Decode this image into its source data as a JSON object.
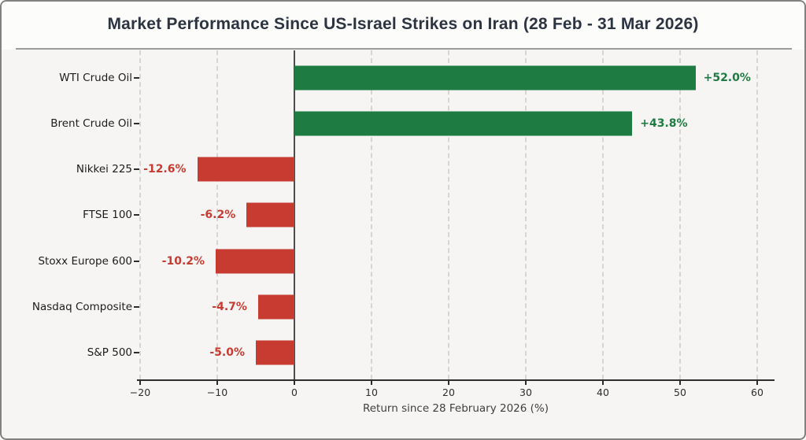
{
  "title": "Market Performance Since US-Israel Strikes on Iran (28 Feb - 31 Mar 2026)",
  "chart_data": {
    "type": "bar",
    "orientation": "horizontal",
    "categories": [
      "WTI Crude Oil",
      "Brent Crude Oil",
      "Nikkei 225",
      "FTSE 100",
      "Stoxx Europe 600",
      "Nasdaq Composite",
      "S&P 500"
    ],
    "values": [
      52.0,
      43.8,
      -12.6,
      -6.2,
      -10.2,
      -4.7,
      -5.0
    ],
    "value_labels": [
      "+52.0%",
      "+43.8%",
      "-12.6%",
      "-6.2%",
      "-10.2%",
      "-4.7%",
      "-5.0%"
    ],
    "title": "Market Performance Since US-Israel Strikes on Iran (28 Feb - 31 Mar 2026)",
    "xlabel": "Return since 28 February 2026 (%)",
    "xticks": [
      -20,
      -10,
      0,
      10,
      20,
      30,
      40,
      50,
      60
    ],
    "xtick_labels": [
      "−20",
      "−10",
      "0",
      "10",
      "20",
      "30",
      "40",
      "50",
      "60"
    ],
    "xlim": [
      -22,
      62
    ],
    "grid": "vertical-dashed",
    "legend": "none",
    "colors": {
      "positive": "#1e7b41",
      "negative": "#c73b31"
    }
  }
}
